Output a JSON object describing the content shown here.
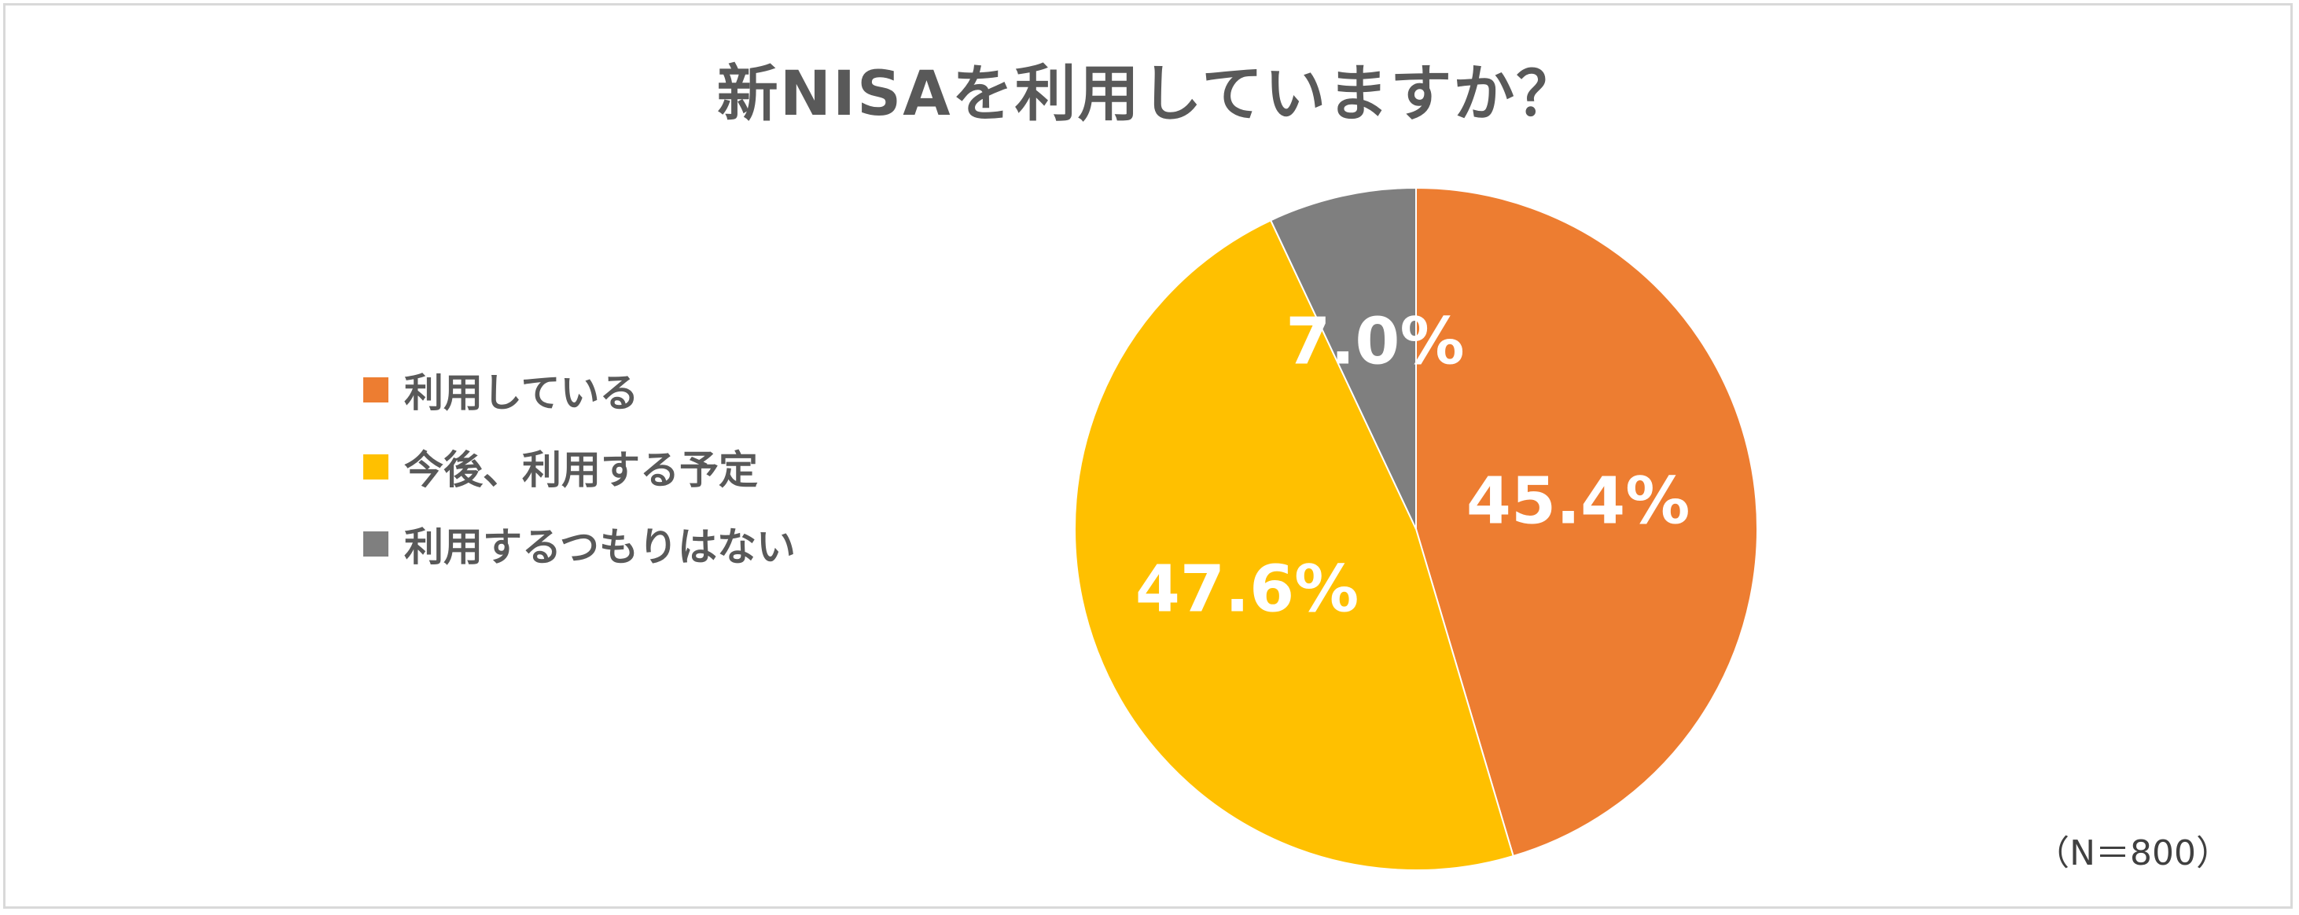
{
  "chart_data": {
    "type": "pie",
    "title": "新NISAを利用していますか？",
    "categories": [
      "利用している",
      "今後、利用する予定",
      "利用するつもりはない"
    ],
    "values": [
      45.4,
      47.6,
      7.0
    ],
    "value_labels": [
      "45.4%",
      "47.6%",
      "7.0%"
    ],
    "colors": [
      "#ED7D31",
      "#FFC000",
      "#7F7F7F"
    ],
    "legend_position": "left",
    "start_angle": "top, clockwise"
  },
  "note": "（N＝800）"
}
